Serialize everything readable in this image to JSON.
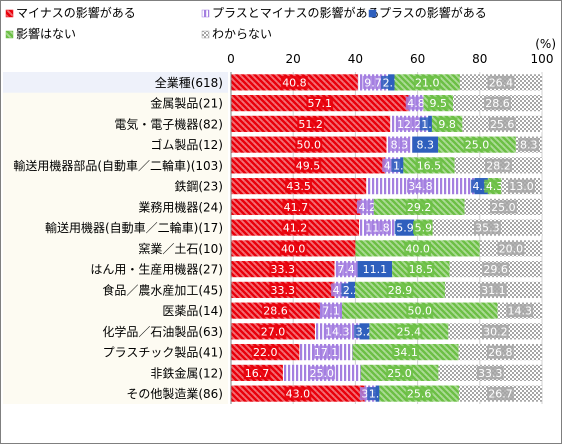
{
  "chart_data": {
    "type": "bar",
    "orientation": "horizontal",
    "stacked": true,
    "unit": "(%)",
    "xlim": [
      0,
      100
    ],
    "x_ticks": [
      0,
      20,
      40,
      60,
      80,
      100
    ],
    "grid": true,
    "legend_position": "top",
    "categories": [
      "全業種(618)",
      "金属製品(21)",
      "電気・電子機器(82)",
      "ゴム製品(12)",
      "輸送用機器部品(自動車／二輪車)(103)",
      "鉄鋼(23)",
      "業務用機器(24)",
      "輸送用機器(自動車／二輪車)(17)",
      "窯業／土石(10)",
      "はん用・生産用機器(27)",
      "食品／農水産加工(45)",
      "医薬品(14)",
      "化学品／石油製品(63)",
      "プラスチック製品(41)",
      "非鉄金属(12)",
      "その他製造業(86)"
    ],
    "series": [
      {
        "name": "マイナスの影響がある",
        "color": "#e8000b",
        "pattern": "diagonal-stripe",
        "values": [
          40.8,
          57.1,
          51.2,
          50.0,
          49.5,
          43.5,
          41.7,
          41.2,
          40.0,
          33.3,
          33.3,
          28.6,
          27.0,
          22.0,
          16.7,
          43.0
        ],
        "labels": [
          "40.8",
          "57.1",
          "51.2",
          "50.0",
          "49.5",
          "43.5",
          "41.7",
          "41.2",
          "40.0",
          "33.3",
          "33.3",
          "28.6",
          "27.0",
          "22.0",
          "16.7",
          "43.0"
        ]
      },
      {
        "name": "プラスとマイナスの影響がある",
        "color": "#a47fe0",
        "pattern": "vertical-stripe",
        "values": [
          9.7,
          4.8,
          12.2,
          8.3,
          4.9,
          34.8,
          4.2,
          11.8,
          0,
          7.4,
          4.4,
          7.1,
          14.3,
          17.1,
          25.0,
          3.5
        ],
        "labels": [
          "9.7",
          "4.8",
          "12.2",
          "8.3",
          "4.9",
          "34.8",
          "4.2",
          "11.8",
          "",
          "7.4",
          "4.4",
          "7.1",
          "14.3",
          "17.1",
          "25.0",
          "3.5"
        ]
      },
      {
        "name": "プラスの影響がある",
        "color": "#2e5fbd",
        "pattern": "solid",
        "values": [
          2.1,
          0,
          1.2,
          8.3,
          1.0,
          4.3,
          0,
          5.9,
          0,
          11.1,
          2.2,
          0,
          3.2,
          0,
          0,
          1.2
        ],
        "labels": [
          "2.1",
          "",
          "1.2",
          "8.3",
          "1.0",
          "4.3",
          "",
          "5.9",
          "",
          "11.1",
          "2.2",
          "",
          "3.2",
          "",
          "",
          "1.2"
        ]
      },
      {
        "name": "影響はない",
        "color": "#6cbf45",
        "pattern": "diagonal-stripe",
        "values": [
          21.0,
          9.5,
          9.8,
          25.0,
          16.5,
          4.3,
          29.2,
          5.9,
          40.0,
          18.5,
          28.9,
          50.0,
          25.4,
          34.1,
          25.0,
          25.6
        ],
        "labels": [
          "21.0",
          "9.5",
          "9.8",
          "25.0",
          "16.5",
          "4.3",
          "29.2",
          "5.9",
          "40.0",
          "18.5",
          "28.9",
          "50.0",
          "25.4",
          "34.1",
          "25.0",
          "25.6"
        ]
      },
      {
        "name": "わからない",
        "color": "#a6a6a6",
        "pattern": "checker",
        "values": [
          26.4,
          28.6,
          25.6,
          8.3,
          28.2,
          13.0,
          25.0,
          35.3,
          20.0,
          29.6,
          31.1,
          14.3,
          30.2,
          26.8,
          33.3,
          26.7
        ],
        "labels": [
          "26.4",
          "28.6",
          "25.6",
          "8.3",
          "28.2",
          "13.0",
          "25.0",
          "35.3",
          "20.0",
          "29.6",
          "31.1",
          "14.3",
          "30.2",
          "26.8",
          "33.3",
          "26.7"
        ]
      }
    ]
  }
}
